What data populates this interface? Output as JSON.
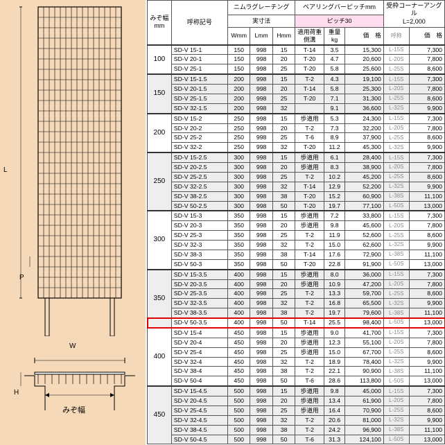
{
  "diagram": {
    "L": "L",
    "P": "P",
    "W": "W",
    "H": "H",
    "mizo": "みぞ幅"
  },
  "headers": {
    "mizo": "みぞ幅\nmm",
    "code": "呼称記号",
    "nimura": "ニムラグレーチング",
    "bearing": "ベアリングバーピッチmm",
    "jissun": "実寸法",
    "pitch30": "ピッチ30",
    "W": "Wmm",
    "L": "Lmm",
    "H": "Hmm",
    "app": "適用荷重\n側溝",
    "wt": "重量\nkg",
    "price": "価　格",
    "corner": "受枠コーナーアングル\nL=2,000",
    "cornerCode": "呼称",
    "cornerPrice": "価　格"
  },
  "groups": [
    {
      "mizo": "100",
      "shade": false,
      "rows": [
        {
          "code": "SD-V 15-1",
          "W": "150",
          "L": "998",
          "H": "15",
          "app": "T-14",
          "wt": "3.5",
          "price": "15,300",
          "cc": "L-15S",
          "cp": "7,300"
        },
        {
          "code": "SD-V 20-1",
          "W": "150",
          "L": "998",
          "H": "20",
          "app": "T-20",
          "wt": "4.7",
          "price": "20,600",
          "cc": "L-20S",
          "cp": "7,800"
        },
        {
          "code": "SD-V 25-1",
          "W": "150",
          "L": "998",
          "H": "25",
          "app": "T-20",
          "wt": "5.8",
          "price": "25,600",
          "cc": "L-25S",
          "cp": "8,600"
        }
      ]
    },
    {
      "mizo": "150",
      "shade": true,
      "rows": [
        {
          "code": "SD-V 15-1.5",
          "W": "200",
          "L": "998",
          "H": "15",
          "app": "T-2",
          "wt": "4.3",
          "price": "19,100",
          "cc": "L-15S",
          "cp": "7,300"
        },
        {
          "code": "SD-V 20-1.5",
          "W": "200",
          "L": "998",
          "H": "20",
          "app": "T-14",
          "wt": "5.8",
          "price": "25,300",
          "cc": "L-20S",
          "cp": "7,800"
        },
        {
          "code": "SD-V 25-1.5",
          "W": "200",
          "L": "998",
          "H": "25",
          "app": "T-20",
          "wt": "7.1",
          "price": "31,300",
          "cc": "L-25S",
          "cp": "8,600"
        },
        {
          "code": "SD-V 32-1.5",
          "W": "200",
          "L": "998",
          "H": "32",
          "app": "",
          "wt": "9.1",
          "price": "36,600",
          "cc": "L-32S",
          "cp": "9,900"
        }
      ]
    },
    {
      "mizo": "200",
      "shade": false,
      "rows": [
        {
          "code": "SD-V 15-2",
          "W": "250",
          "L": "998",
          "H": "15",
          "app": "歩道用",
          "wt": "5.3",
          "price": "24,300",
          "cc": "L-15S",
          "cp": "7,300"
        },
        {
          "code": "SD-V 20-2",
          "W": "250",
          "L": "998",
          "H": "20",
          "app": "T-2",
          "wt": "7.3",
          "price": "32,200",
          "cc": "L-20S",
          "cp": "7,800"
        },
        {
          "code": "SD-V 25-2",
          "W": "250",
          "L": "998",
          "H": "25",
          "app": "T-6",
          "wt": "8.9",
          "price": "37,900",
          "cc": "L-25S",
          "cp": "8,600"
        },
        {
          "code": "SD-V 32-2",
          "W": "250",
          "L": "998",
          "H": "32",
          "app": "T-20",
          "wt": "11.2",
          "price": "45,300",
          "cc": "L-32S",
          "cp": "9,900"
        }
      ]
    },
    {
      "mizo": "250",
      "shade": true,
      "rows": [
        {
          "code": "SD-V 15-2.5",
          "W": "300",
          "L": "998",
          "H": "15",
          "app": "歩道用",
          "wt": "6.1",
          "price": "28,400",
          "cc": "L-15S",
          "cp": "7,300"
        },
        {
          "code": "SD-V 20-2.5",
          "W": "300",
          "L": "998",
          "H": "20",
          "app": "歩道用",
          "wt": "8.3",
          "price": "38,900",
          "cc": "L-20S",
          "cp": "7,800"
        },
        {
          "code": "SD-V 25-2.5",
          "W": "300",
          "L": "998",
          "H": "25",
          "app": "T-2",
          "wt": "10.2",
          "price": "45,200",
          "cc": "L-25S",
          "cp": "8,600"
        },
        {
          "code": "SD-V 32-2.5",
          "W": "300",
          "L": "998",
          "H": "32",
          "app": "T-14",
          "wt": "12.9",
          "price": "52,200",
          "cc": "L-32S",
          "cp": "9,900"
        },
        {
          "code": "SD-V 38-2.5",
          "W": "300",
          "L": "998",
          "H": "38",
          "app": "T-20",
          "wt": "15.2",
          "price": "60,900",
          "cc": "L-38S",
          "cp": "11,100"
        },
        {
          "code": "SD-V 50-2.5",
          "W": "300",
          "L": "998",
          "H": "50",
          "app": "T-20",
          "wt": "19.7",
          "price": "77,100",
          "cc": "L-50S",
          "cp": "13,000"
        }
      ]
    },
    {
      "mizo": "300",
      "shade": false,
      "rows": [
        {
          "code": "SD-V 15-3",
          "W": "350",
          "L": "998",
          "H": "15",
          "app": "歩道用",
          "wt": "7.2",
          "price": "33,800",
          "cc": "L-15S",
          "cp": "7,300"
        },
        {
          "code": "SD-V 20-3",
          "W": "350",
          "L": "998",
          "H": "20",
          "app": "歩道用",
          "wt": "9.8",
          "price": "45,600",
          "cc": "L-20S",
          "cp": "7,800"
        },
        {
          "code": "SD-V 25-3",
          "W": "350",
          "L": "998",
          "H": "25",
          "app": "T-2",
          "wt": "11.9",
          "price": "52,600",
          "cc": "L-25S",
          "cp": "8,600"
        },
        {
          "code": "SD-V 32-3",
          "W": "350",
          "L": "998",
          "H": "32",
          "app": "T-2",
          "wt": "15.0",
          "price": "62,600",
          "cc": "L-32S",
          "cp": "9,900"
        },
        {
          "code": "SD-V 38-3",
          "W": "350",
          "L": "998",
          "H": "38",
          "app": "T-14",
          "wt": "17.6",
          "price": "72,900",
          "cc": "L-38S",
          "cp": "11,100"
        },
        {
          "code": "SD-V 50-3",
          "W": "350",
          "L": "998",
          "H": "50",
          "app": "T-20",
          "wt": "22.8",
          "price": "91,900",
          "cc": "L-50S",
          "cp": "13,000"
        }
      ]
    },
    {
      "mizo": "350",
      "shade": true,
      "rows": [
        {
          "code": "SD-V 15-3.5",
          "W": "400",
          "L": "998",
          "H": "15",
          "app": "歩道用",
          "wt": "8.0",
          "price": "36,000",
          "cc": "L-15S",
          "cp": "7,300"
        },
        {
          "code": "SD-V 20-3.5",
          "W": "400",
          "L": "998",
          "H": "20",
          "app": "歩道用",
          "wt": "10.9",
          "price": "47,200",
          "cc": "L-20S",
          "cp": "7,800"
        },
        {
          "code": "SD-V 25-3.5",
          "W": "400",
          "L": "998",
          "H": "25",
          "app": "T-2",
          "wt": "13.3",
          "price": "59,700",
          "cc": "L-25S",
          "cp": "8,600"
        },
        {
          "code": "SD-V 32-3.5",
          "W": "400",
          "L": "998",
          "H": "32",
          "app": "T-2",
          "wt": "16.8",
          "price": "65,500",
          "cc": "L-32S",
          "cp": "9,900"
        },
        {
          "code": "SD-V 38-3.5",
          "W": "400",
          "L": "998",
          "H": "38",
          "app": "T-2",
          "wt": "19.7",
          "price": "79,600",
          "cc": "L-38S",
          "cp": "11,100"
        },
        {
          "code": "SD-V 50-3.5",
          "W": "400",
          "L": "998",
          "H": "50",
          "app": "T-14",
          "wt": "25.5",
          "price": "98,400",
          "cc": "L-50S",
          "cp": "13,000",
          "highlight": true
        }
      ]
    },
    {
      "mizo": "400",
      "shade": false,
      "rows": [
        {
          "code": "SD-V 15-4",
          "W": "450",
          "L": "998",
          "H": "15",
          "app": "歩道用",
          "wt": "9.0",
          "price": "41,700",
          "cc": "L-15S",
          "cp": "7,300"
        },
        {
          "code": "SD-V 20-4",
          "W": "450",
          "L": "998",
          "H": "20",
          "app": "歩道用",
          "wt": "12.3",
          "price": "55,100",
          "cc": "L-20S",
          "cp": "7,800"
        },
        {
          "code": "SD-V 25-4",
          "W": "450",
          "L": "998",
          "H": "25",
          "app": "歩道用",
          "wt": "15.0",
          "price": "67,700",
          "cc": "L-25S",
          "cp": "8,600"
        },
        {
          "code": "SD-V 32-4",
          "W": "450",
          "L": "998",
          "H": "32",
          "app": "T-2",
          "wt": "18.9",
          "price": "78,400",
          "cc": "L-32S",
          "cp": "9,900"
        },
        {
          "code": "SD-V 38-4",
          "W": "450",
          "L": "998",
          "H": "38",
          "app": "T-2",
          "wt": "22.1",
          "price": "90,900",
          "cc": "L-38S",
          "cp": "11,100"
        },
        {
          "code": "SD-V 50-4",
          "W": "450",
          "L": "998",
          "H": "50",
          "app": "T-6",
          "wt": "28.6",
          "price": "113,800",
          "cc": "L-50S",
          "cp": "13,000"
        }
      ]
    },
    {
      "mizo": "450",
      "shade": true,
      "rows": [
        {
          "code": "SD-V 15-4.5",
          "W": "500",
          "L": "998",
          "H": "15",
          "app": "歩道用",
          "wt": "9.8",
          "price": "45,000",
          "cc": "L-15S",
          "cp": "7,300"
        },
        {
          "code": "SD-V 20-4.5",
          "W": "500",
          "L": "998",
          "H": "20",
          "app": "歩道用",
          "wt": "13.4",
          "price": "61,900",
          "cc": "L-20S",
          "cp": "7,800"
        },
        {
          "code": "SD-V 25-4.5",
          "W": "500",
          "L": "998",
          "H": "25",
          "app": "歩道用",
          "wt": "16.4",
          "price": "70,900",
          "cc": "L-25S",
          "cp": "8,600"
        },
        {
          "code": "SD-V 32-4.5",
          "W": "500",
          "L": "998",
          "H": "32",
          "app": "T-2",
          "wt": "20.6",
          "price": "81,000",
          "cc": "L-32S",
          "cp": "9,900"
        },
        {
          "code": "SD-V 38-4.5",
          "W": "500",
          "L": "998",
          "H": "38",
          "app": "T-2",
          "wt": "24.2",
          "price": "96,900",
          "cc": "L-38S",
          "cp": "11,100"
        },
        {
          "code": "SD-V 50-4.5",
          "W": "500",
          "L": "998",
          "H": "50",
          "app": "T-6",
          "wt": "31.3",
          "price": "124,100",
          "cc": "L-50S",
          "cp": "13,000"
        }
      ]
    }
  ]
}
